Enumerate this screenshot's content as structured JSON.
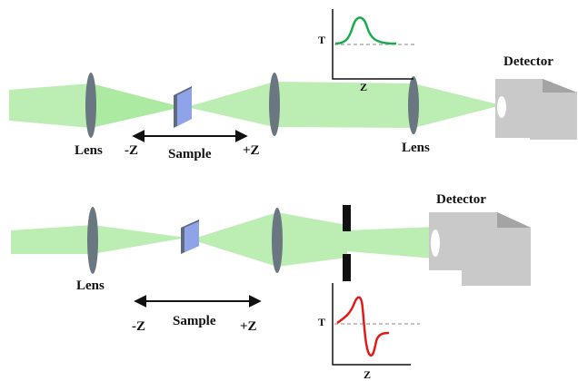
{
  "colors": {
    "beam": "#a6e89a",
    "lens": "#6b7780",
    "sample_front": "#8fa4e8",
    "sample_side": "#5e6a80",
    "detector_front": "#c9c9c9",
    "detector_top": "#7b7b7b",
    "detector_side": "#a4a4a4",
    "aperture": "#111111",
    "open_aperture_curve": "#1aab4f",
    "closed_aperture_curve": "#e01b1b",
    "baseline": "#888888"
  },
  "top_setup": {
    "lens_left_label": "Lens",
    "minus_z_label": "-Z",
    "sample_label": "Sample",
    "plus_z_label": "+Z",
    "lens_right_label": "Lens",
    "detector_label": "Detector",
    "inset": {
      "y_axis_label": "T",
      "x_axis_label": "Z",
      "curve_icon": "peak-curve-icon"
    }
  },
  "bottom_setup": {
    "lens_label": "Lens",
    "minus_z_label": "-Z",
    "sample_label": "Sample",
    "plus_z_label": "+Z",
    "detector_label": "Detector",
    "inset": {
      "y_axis_label": "T",
      "x_axis_label": "Z",
      "curve_icon": "peak-valley-curve-icon"
    }
  }
}
